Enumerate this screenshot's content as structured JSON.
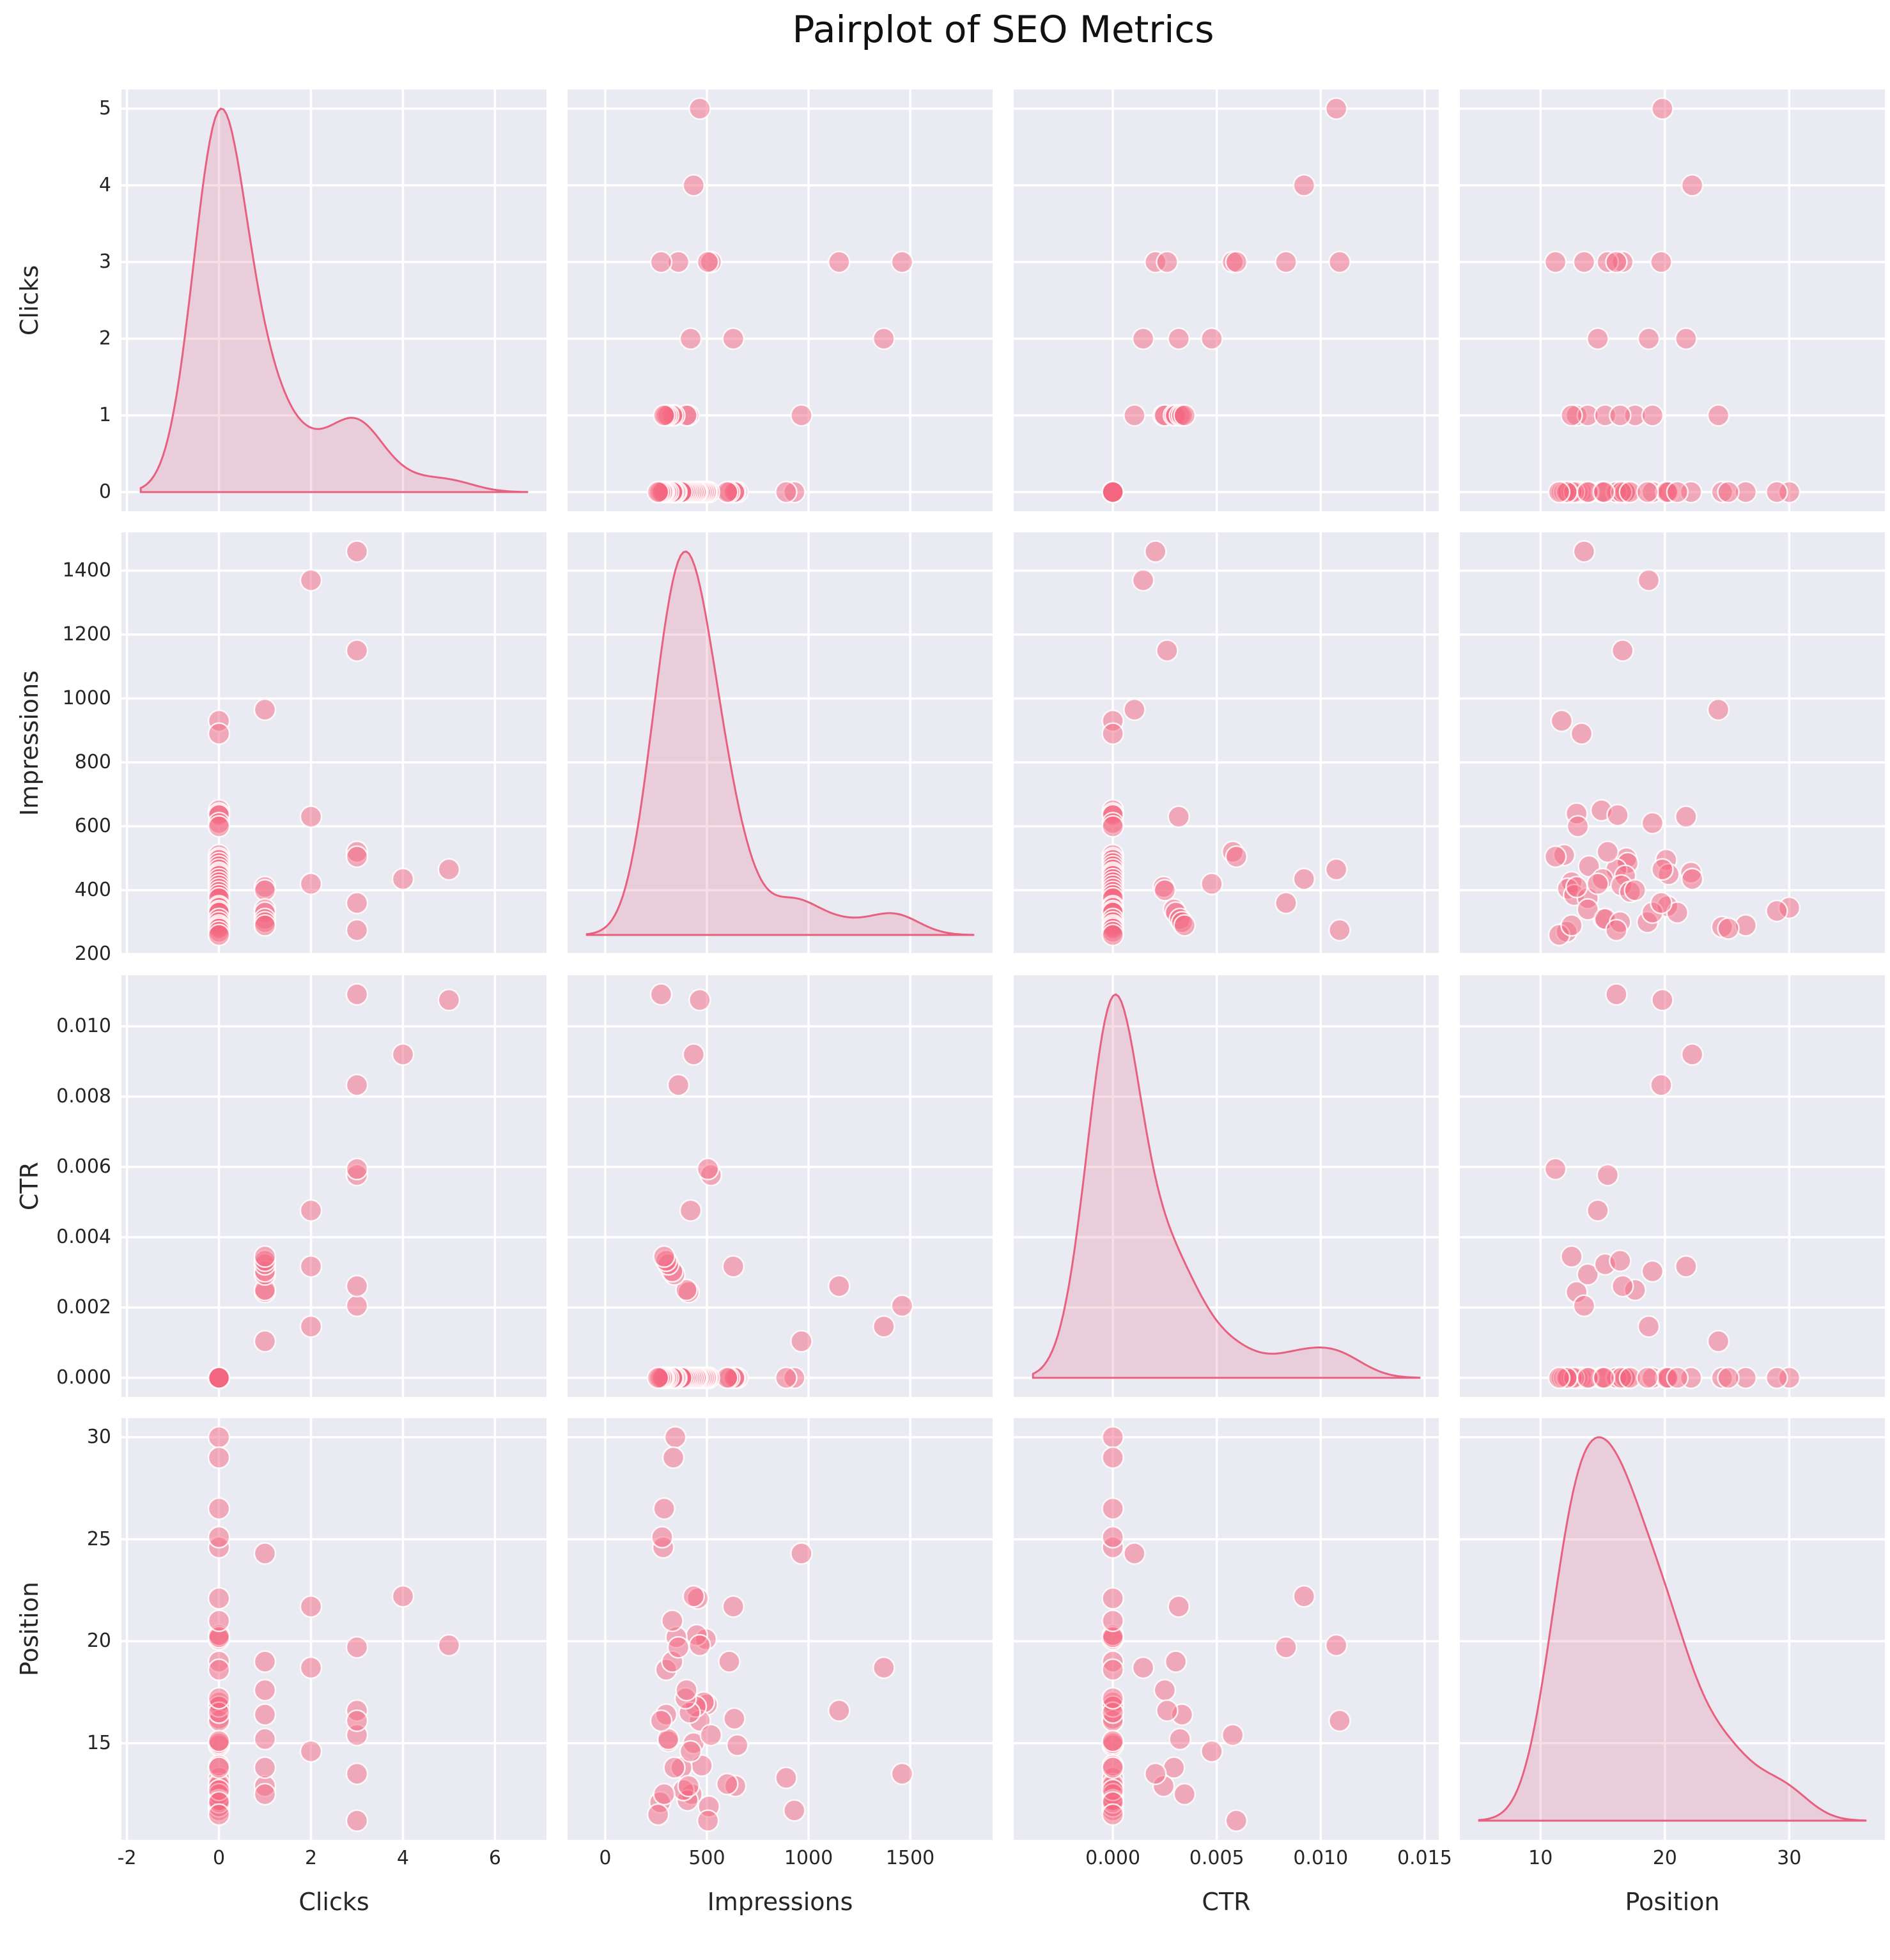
{
  "title": "Pairplot of SEO Metrics",
  "figure_style": {
    "panel_background": "#eaeaf2",
    "grid_color": "#ffffff",
    "marker_color": "#f4657f",
    "marker_opacity": 0.5,
    "marker_edge_color": "#ffffff",
    "kde_line_color": "#e8607f",
    "kde_fill_color": "rgba(234,106,136,0.22)",
    "text_color": "#262626"
  },
  "chart_data": {
    "type": "pairplot",
    "title": "Pairplot of SEO Metrics",
    "variables": [
      "Clicks",
      "Impressions",
      "CTR",
      "Position"
    ],
    "diagonal": "kde",
    "grid": true,
    "legend": "none",
    "axes": {
      "Clicks": {
        "x_ticks": [
          -2,
          0,
          2,
          4,
          6
        ],
        "x_tick_labels": [
          "-2",
          "0",
          "2",
          "4",
          "6"
        ],
        "y_ticks": [
          0,
          1,
          2,
          3,
          4,
          5
        ],
        "y_tick_labels": [
          "0",
          "1",
          "2",
          "3",
          "4",
          "5"
        ]
      },
      "Impressions": {
        "x_ticks": [
          0,
          500,
          1000,
          1500
        ],
        "x_tick_labels": [
          "0",
          "500",
          "1000",
          "1500"
        ],
        "y_ticks": [
          200,
          400,
          600,
          800,
          1000,
          1200,
          1400
        ],
        "y_tick_labels": [
          "200",
          "400",
          "600",
          "800",
          "1000",
          "1200",
          "1400"
        ]
      },
      "CTR": {
        "x_ticks": [
          0,
          0.005,
          0.01,
          0.015
        ],
        "x_tick_labels": [
          "0.000",
          "0.005",
          "0.010",
          "0.015"
        ],
        "y_ticks": [
          0,
          0.002,
          0.004,
          0.006,
          0.008,
          0.01
        ],
        "y_tick_labels": [
          "0.000",
          "0.002",
          "0.004",
          "0.006",
          "0.008",
          "0.010"
        ]
      },
      "Position": {
        "x_ticks": [
          10,
          20,
          30
        ],
        "x_tick_labels": [
          "10",
          "20",
          "30"
        ],
        "y_ticks": [
          15,
          20,
          25,
          30
        ],
        "y_tick_labels": [
          "15",
          "20",
          "25",
          "30"
        ]
      }
    },
    "columns": [
      "Clicks",
      "Impressions",
      "CTR",
      "Position"
    ],
    "points": [
      [
        0,
        930,
        0,
        11.7
      ],
      [
        0,
        890,
        0,
        13.3
      ],
      [
        0,
        650,
        0,
        14.9
      ],
      [
        0,
        640,
        0,
        12.9
      ],
      [
        0,
        635,
        0,
        16.2
      ],
      [
        0,
        610,
        0,
        19.0
      ],
      [
        0,
        600,
        0,
        13.0
      ],
      [
        0,
        510,
        0,
        11.9
      ],
      [
        0,
        500,
        0,
        16.9
      ],
      [
        0,
        495,
        0,
        20.1
      ],
      [
        0,
        485,
        0,
        17.0
      ],
      [
        0,
        475,
        0,
        13.9
      ],
      [
        0,
        465,
        0,
        16.1
      ],
      [
        0,
        455,
        0,
        22.1
      ],
      [
        0,
        450,
        0,
        20.3
      ],
      [
        0,
        445,
        0,
        16.8
      ],
      [
        0,
        435,
        0,
        15.0
      ],
      [
        0,
        425,
        0,
        12.5
      ],
      [
        0,
        415,
        0,
        16.5
      ],
      [
        0,
        405,
        0,
        12.2
      ],
      [
        0,
        395,
        0,
        17.2
      ],
      [
        0,
        385,
        0,
        12.7
      ],
      [
        0,
        375,
        0,
        13.8
      ],
      [
        0,
        350,
        0,
        20.2
      ],
      [
        0,
        345,
        0,
        30.0
      ],
      [
        0,
        335,
        0,
        29.0
      ],
      [
        0,
        330,
        0,
        21.0
      ],
      [
        0,
        310,
        0,
        15.1
      ],
      [
        0,
        300,
        0,
        18.6
      ],
      [
        0,
        290,
        0,
        26.5
      ],
      [
        0,
        285,
        0,
        24.6
      ],
      [
        0,
        280,
        0,
        25.1
      ],
      [
        0,
        270,
        0,
        12.1
      ],
      [
        0,
        260,
        0,
        11.5
      ],
      [
        1,
        965,
        0.00104,
        24.3
      ],
      [
        1,
        410,
        0.00244,
        12.9
      ],
      [
        1,
        400,
        0.0025,
        17.6
      ],
      [
        1,
        340,
        0.00294,
        13.8
      ],
      [
        1,
        330,
        0.00303,
        19.0
      ],
      [
        1,
        310,
        0.00323,
        15.2
      ],
      [
        1,
        300,
        0.00333,
        16.4
      ],
      [
        1,
        290,
        0.00345,
        12.5
      ],
      [
        2,
        1370,
        0.00146,
        18.7
      ],
      [
        2,
        630,
        0.00317,
        21.7
      ],
      [
        2,
        420,
        0.00476,
        14.6
      ],
      [
        3,
        1460,
        0.00205,
        13.5
      ],
      [
        3,
        1150,
        0.00261,
        16.6
      ],
      [
        3,
        520,
        0.00577,
        15.4
      ],
      [
        3,
        505,
        0.00594,
        11.2
      ],
      [
        3,
        360,
        0.00833,
        19.7
      ],
      [
        3,
        275,
        0.01091,
        16.1
      ],
      [
        4,
        435,
        0.0092,
        22.2
      ],
      [
        5,
        465,
        0.01075,
        19.8
      ]
    ]
  }
}
